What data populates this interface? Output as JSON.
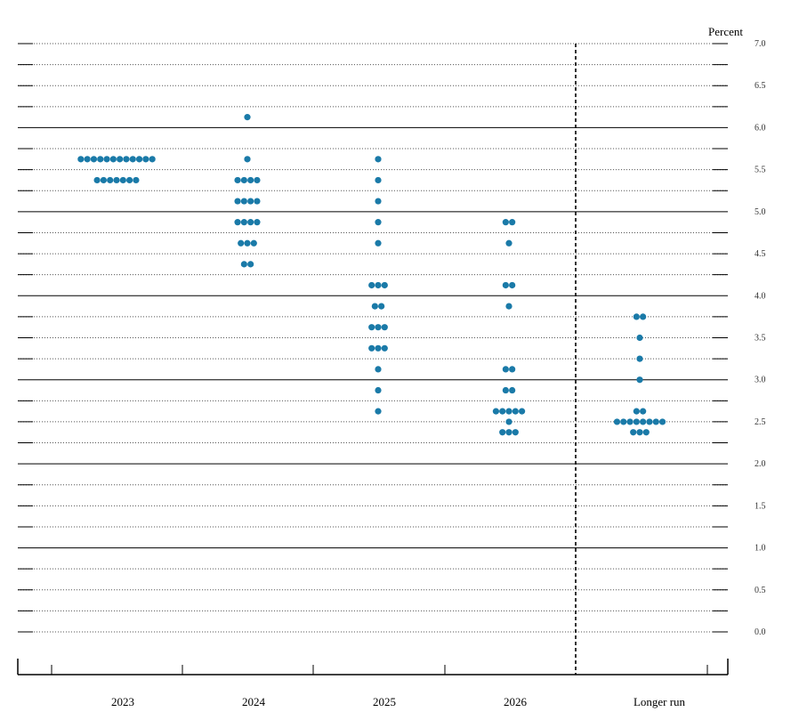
{
  "chart_data": {
    "type": "scatter",
    "subtype": "dot-plot",
    "unit_label": "Percent",
    "ylim": [
      0,
      7
    ],
    "y_ticks": [
      "0.0",
      "0.5",
      "1.0",
      "1.5",
      "2.0",
      "2.5",
      "3.0",
      "3.5",
      "4.0",
      "4.5",
      "5.0",
      "5.5",
      "6.0",
      "6.5",
      "7.0"
    ],
    "grid": "major solid at whole numbers, dotted at quarter points",
    "dot_color": "#1a7aa8",
    "categories": [
      "2023",
      "2024",
      "2025",
      "2026",
      "Longer run"
    ],
    "points": [
      [
        {
          "y": 5.625,
          "n": 12
        },
        {
          "y": 5.375,
          "n": 7
        }
      ],
      [
        {
          "y": 6.125,
          "n": 1
        },
        {
          "y": 5.625,
          "n": 1
        },
        {
          "y": 5.375,
          "n": 4
        },
        {
          "y": 5.125,
          "n": 4
        },
        {
          "y": 4.875,
          "n": 4
        },
        {
          "y": 4.625,
          "n": 3
        },
        {
          "y": 4.375,
          "n": 2
        }
      ],
      [
        {
          "y": 5.625,
          "n": 1
        },
        {
          "y": 5.375,
          "n": 1
        },
        {
          "y": 5.125,
          "n": 1
        },
        {
          "y": 4.875,
          "n": 1
        },
        {
          "y": 4.625,
          "n": 1
        },
        {
          "y": 4.125,
          "n": 3
        },
        {
          "y": 3.875,
          "n": 2
        },
        {
          "y": 3.625,
          "n": 3
        },
        {
          "y": 3.375,
          "n": 3
        },
        {
          "y": 3.125,
          "n": 1
        },
        {
          "y": 2.875,
          "n": 1
        },
        {
          "y": 2.625,
          "n": 1
        }
      ],
      [
        {
          "y": 4.875,
          "n": 2
        },
        {
          "y": 4.625,
          "n": 1
        },
        {
          "y": 4.125,
          "n": 2
        },
        {
          "y": 3.875,
          "n": 1
        },
        {
          "y": 3.125,
          "n": 2
        },
        {
          "y": 2.875,
          "n": 2
        },
        {
          "y": 2.625,
          "n": 5
        },
        {
          "y": 2.5,
          "n": 1
        },
        {
          "y": 2.375,
          "n": 3
        }
      ],
      [
        {
          "y": 3.75,
          "n": 2
        },
        {
          "y": 3.5,
          "n": 1
        },
        {
          "y": 3.25,
          "n": 1
        },
        {
          "y": 3.0,
          "n": 1
        },
        {
          "y": 2.625,
          "n": 2
        },
        {
          "y": 2.5,
          "n": 8
        },
        {
          "y": 2.375,
          "n": 3
        }
      ]
    ]
  }
}
